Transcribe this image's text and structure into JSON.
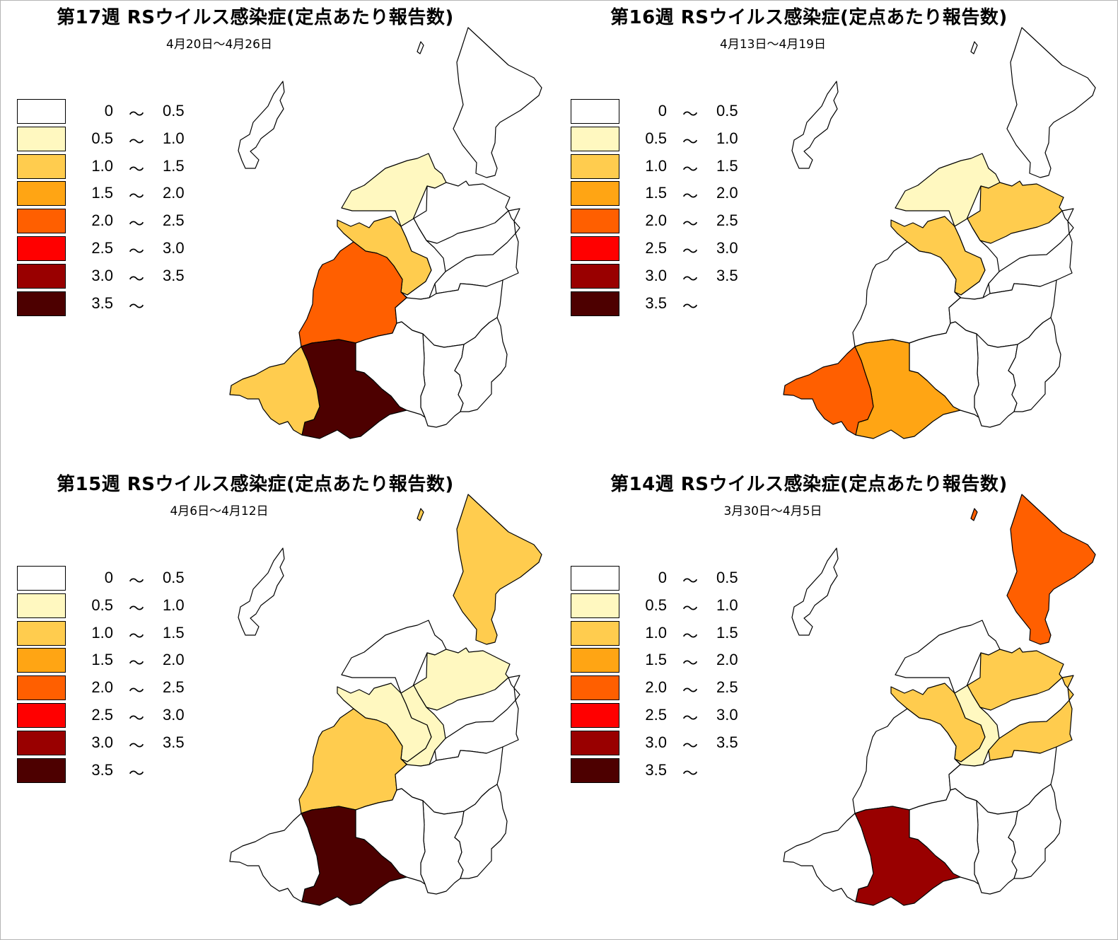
{
  "legend": {
    "separator": "〜",
    "classes": [
      {
        "lo": "0",
        "hi": "0.5",
        "color": "#ffffff"
      },
      {
        "lo": "0.5",
        "hi": "1.0",
        "color": "#fff8c0"
      },
      {
        "lo": "1.0",
        "hi": "1.5",
        "color": "#ffcc4e"
      },
      {
        "lo": "1.5",
        "hi": "2.0",
        "color": "#ffa514"
      },
      {
        "lo": "2.0",
        "hi": "2.5",
        "color": "#ff5f00"
      },
      {
        "lo": "2.5",
        "hi": "3.0",
        "color": "#ff0000"
      },
      {
        "lo": "3.0",
        "hi": "3.5",
        "color": "#990000"
      },
      {
        "lo": "3.5",
        "hi": "",
        "color": "#4d0000"
      }
    ]
  },
  "region_ids": [
    "sado",
    "awashima",
    "iwafune",
    "niigata_n",
    "niigata_c",
    "shibata",
    "tsubame",
    "sanjo",
    "kashiwazaki",
    "nagaoka",
    "uonuma",
    "minamiuonuma",
    "tokamachi",
    "joetsu",
    "itoigawa"
  ],
  "panels": [
    {
      "title": "第17週 RSウイルス感染症(定点あたり報告数)",
      "period": "4月20日～4月26日",
      "region_class": {
        "sado": 0,
        "awashima": 0,
        "iwafune": 0,
        "niigata_n": 1,
        "niigata_c": 2,
        "shibata": 0,
        "tsubame": 0,
        "sanjo": 0,
        "kashiwazaki": 4,
        "nagaoka": 0,
        "uonuma": 0,
        "minamiuonuma": 0,
        "tokamachi": 0,
        "joetsu": 7,
        "itoigawa": 2
      }
    },
    {
      "title": "第16週 RSウイルス感染症(定点あたり報告数)",
      "period": "4月13日～4月19日",
      "region_class": {
        "sado": 0,
        "awashima": 0,
        "iwafune": 0,
        "niigata_n": 1,
        "niigata_c": 2,
        "shibata": 2,
        "tsubame": 0,
        "sanjo": 0,
        "kashiwazaki": 0,
        "nagaoka": 0,
        "uonuma": 0,
        "minamiuonuma": 0,
        "tokamachi": 0,
        "joetsu": 3,
        "itoigawa": 4
      }
    },
    {
      "title": "第15週 RSウイルス感染症(定点あたり報告数)",
      "period": "4月6日～4月12日",
      "region_class": {
        "sado": 0,
        "awashima": 2,
        "iwafune": 2,
        "niigata_n": 0,
        "niigata_c": 1,
        "shibata": 1,
        "tsubame": 1,
        "sanjo": 0,
        "kashiwazaki": 2,
        "nagaoka": 0,
        "uonuma": 0,
        "minamiuonuma": 0,
        "tokamachi": 0,
        "joetsu": 7,
        "itoigawa": 0
      }
    },
    {
      "title": "第14週 RSウイルス感染症(定点あたり報告数)",
      "period": "3月30日～4月5日",
      "region_class": {
        "sado": 0,
        "awashima": 4,
        "iwafune": 4,
        "niigata_n": 0,
        "niigata_c": 2,
        "shibata": 2,
        "tsubame": 1,
        "sanjo": 2,
        "kashiwazaki": 0,
        "nagaoka": 0,
        "uonuma": 0,
        "minamiuonuma": 0,
        "tokamachi": 0,
        "joetsu": 6,
        "itoigawa": 0
      }
    }
  ]
}
